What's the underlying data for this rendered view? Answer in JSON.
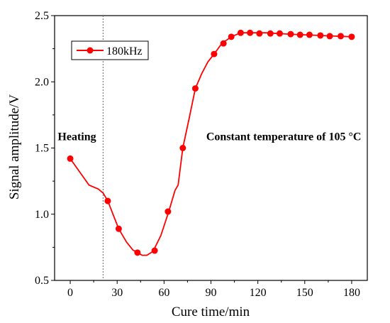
{
  "chart_data": {
    "type": "line",
    "xlabel": "Cure time/min",
    "ylabel": "Signal amplitude/V",
    "xlim": [
      -10,
      190
    ],
    "ylim": [
      0.5,
      2.5
    ],
    "x_ticks": [
      0,
      30,
      60,
      90,
      120,
      150,
      180
    ],
    "y_ticks": [
      0.5,
      1.0,
      1.5,
      2.0,
      2.5
    ],
    "x_tick_labels": [
      "0",
      "30",
      "60",
      "90",
      "120",
      "150",
      "180"
    ],
    "y_tick_labels": [
      "0.5",
      "1.0",
      "1.5",
      "2.0",
      "2.5"
    ],
    "legend_position": "top-left",
    "grid": false,
    "series": [
      {
        "name": "180kHz",
        "color": "#ff0000",
        "line": [
          [
            0,
            1.42
          ],
          [
            6,
            1.32
          ],
          [
            12,
            1.22
          ],
          [
            18,
            1.19
          ],
          [
            21,
            1.16
          ],
          [
            24,
            1.1
          ],
          [
            28,
            0.98
          ],
          [
            31,
            0.89
          ],
          [
            36,
            0.79
          ],
          [
            40,
            0.73
          ],
          [
            43,
            0.71
          ],
          [
            46,
            0.69
          ],
          [
            49,
            0.69
          ],
          [
            53,
            0.72
          ],
          [
            58,
            0.84
          ],
          [
            63,
            1.02
          ],
          [
            67,
            1.18
          ],
          [
            69,
            1.22
          ],
          [
            72,
            1.5
          ],
          [
            76,
            1.72
          ],
          [
            80,
            1.95
          ],
          [
            84,
            2.06
          ],
          [
            88,
            2.15
          ],
          [
            92,
            2.21
          ],
          [
            97,
            2.29
          ],
          [
            103,
            2.34
          ],
          [
            109,
            2.37
          ],
          [
            115,
            2.37
          ],
          [
            125,
            2.37
          ],
          [
            140,
            2.36
          ],
          [
            160,
            2.35
          ],
          [
            180,
            2.34
          ]
        ],
        "markers": [
          [
            0,
            1.42
          ],
          [
            24,
            1.1
          ],
          [
            31,
            0.89
          ],
          [
            43,
            0.71
          ],
          [
            54,
            0.725
          ],
          [
            62.5,
            1.02
          ],
          [
            72,
            1.5
          ],
          [
            80,
            1.95
          ],
          [
            92,
            2.21
          ],
          [
            98,
            2.29
          ],
          [
            103,
            2.34
          ],
          [
            109,
            2.37
          ],
          [
            115,
            2.37
          ],
          [
            121,
            2.365
          ],
          [
            128,
            2.365
          ],
          [
            134,
            2.365
          ],
          [
            141,
            2.36
          ],
          [
            147,
            2.355
          ],
          [
            153,
            2.355
          ],
          [
            160,
            2.35
          ],
          [
            166,
            2.345
          ],
          [
            173,
            2.345
          ],
          [
            180,
            2.34
          ]
        ]
      }
    ],
    "vertical_reference_line_x": 21,
    "annotations": [
      {
        "text": "Heating",
        "x": -8,
        "y": 1.56
      },
      {
        "text": "Constant temperature of 105 °C",
        "x": 87,
        "y": 1.56
      }
    ]
  }
}
